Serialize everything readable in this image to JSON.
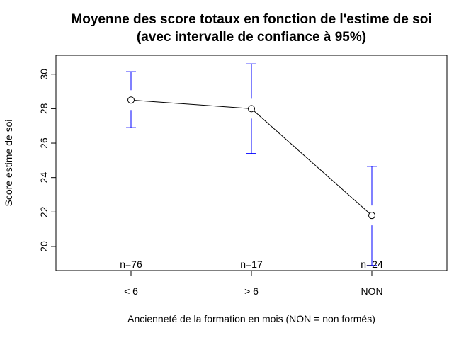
{
  "chart_data": {
    "type": "line",
    "title": "Moyenne des score totaux en fonction de l'estime de soi",
    "subtitle": "(avec intervalle de confiance à 95%)",
    "xlabel": "Ancienneté de la formation en mois (NON = non formés)",
    "ylabel": "Score estime de soi",
    "categories": [
      "< 6",
      "> 6",
      "NON"
    ],
    "series": [
      {
        "values": [
          28.5,
          28.0,
          21.8
        ],
        "ci_lower": [
          26.9,
          25.4,
          18.9
        ],
        "ci_upper": [
          30.15,
          30.6,
          24.65
        ]
      }
    ],
    "n_labels": [
      "n=76",
      "n=17",
      "n=24"
    ],
    "yticks": [
      20,
      22,
      24,
      26,
      28,
      30
    ],
    "ylim": [
      18.6,
      31.1
    ],
    "grid": false,
    "line_color": "#000000",
    "errorbar_color": "#0000ff"
  }
}
